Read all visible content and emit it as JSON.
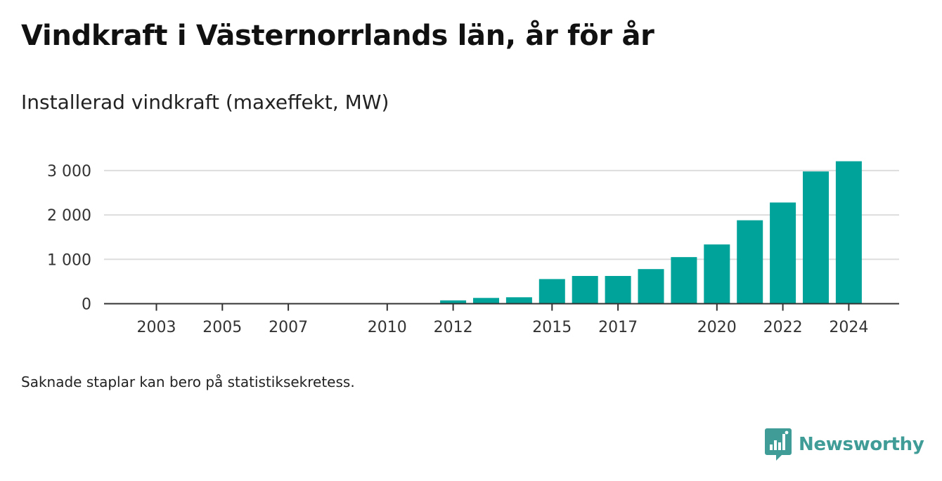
{
  "header": {
    "title": "Vindkraft i Västernorrlands län, år för år",
    "subtitle": "Installerad vindkraft (maxeffekt, MW)"
  },
  "footer": {
    "note": "Saknade staplar kan bero på statistiksekretess.",
    "brand": "Newsworthy",
    "brand_icon": "newsworthy-logo-icon"
  },
  "colors": {
    "bar": "#00a39a",
    "grid": "#dddddd",
    "axis": "#333333",
    "brand": "#3f9c97"
  },
  "chart_data": {
    "type": "bar",
    "title": "Vindkraft i Västernorrlands län, år för år",
    "subtitle": "Installerad vindkraft (maxeffekt, MW)",
    "xlabel": "",
    "ylabel": "",
    "categories": [
      "2003",
      "2004",
      "2005",
      "2006",
      "2007",
      "2008",
      "2009",
      "2010",
      "2011",
      "2012",
      "2013",
      "2014",
      "2015",
      "2016",
      "2017",
      "2018",
      "2019",
      "2020",
      "2021",
      "2022",
      "2023",
      "2024"
    ],
    "values": [
      3,
      3,
      3,
      3,
      3,
      null,
      null,
      3,
      3,
      75,
      130,
      145,
      555,
      625,
      625,
      780,
      1050,
      1335,
      1880,
      2280,
      2980,
      3210
    ],
    "x_tick_labels": [
      "2003",
      "2005",
      "2007",
      "2010",
      "2012",
      "2015",
      "2017",
      "2020",
      "2022",
      "2024"
    ],
    "y_ticks": [
      0,
      1000,
      2000,
      3000
    ],
    "y_tick_labels": [
      "0",
      "1 000",
      "2 000",
      "3 000"
    ],
    "ylim": [
      0,
      3400
    ],
    "grid": true,
    "legend": "none"
  }
}
